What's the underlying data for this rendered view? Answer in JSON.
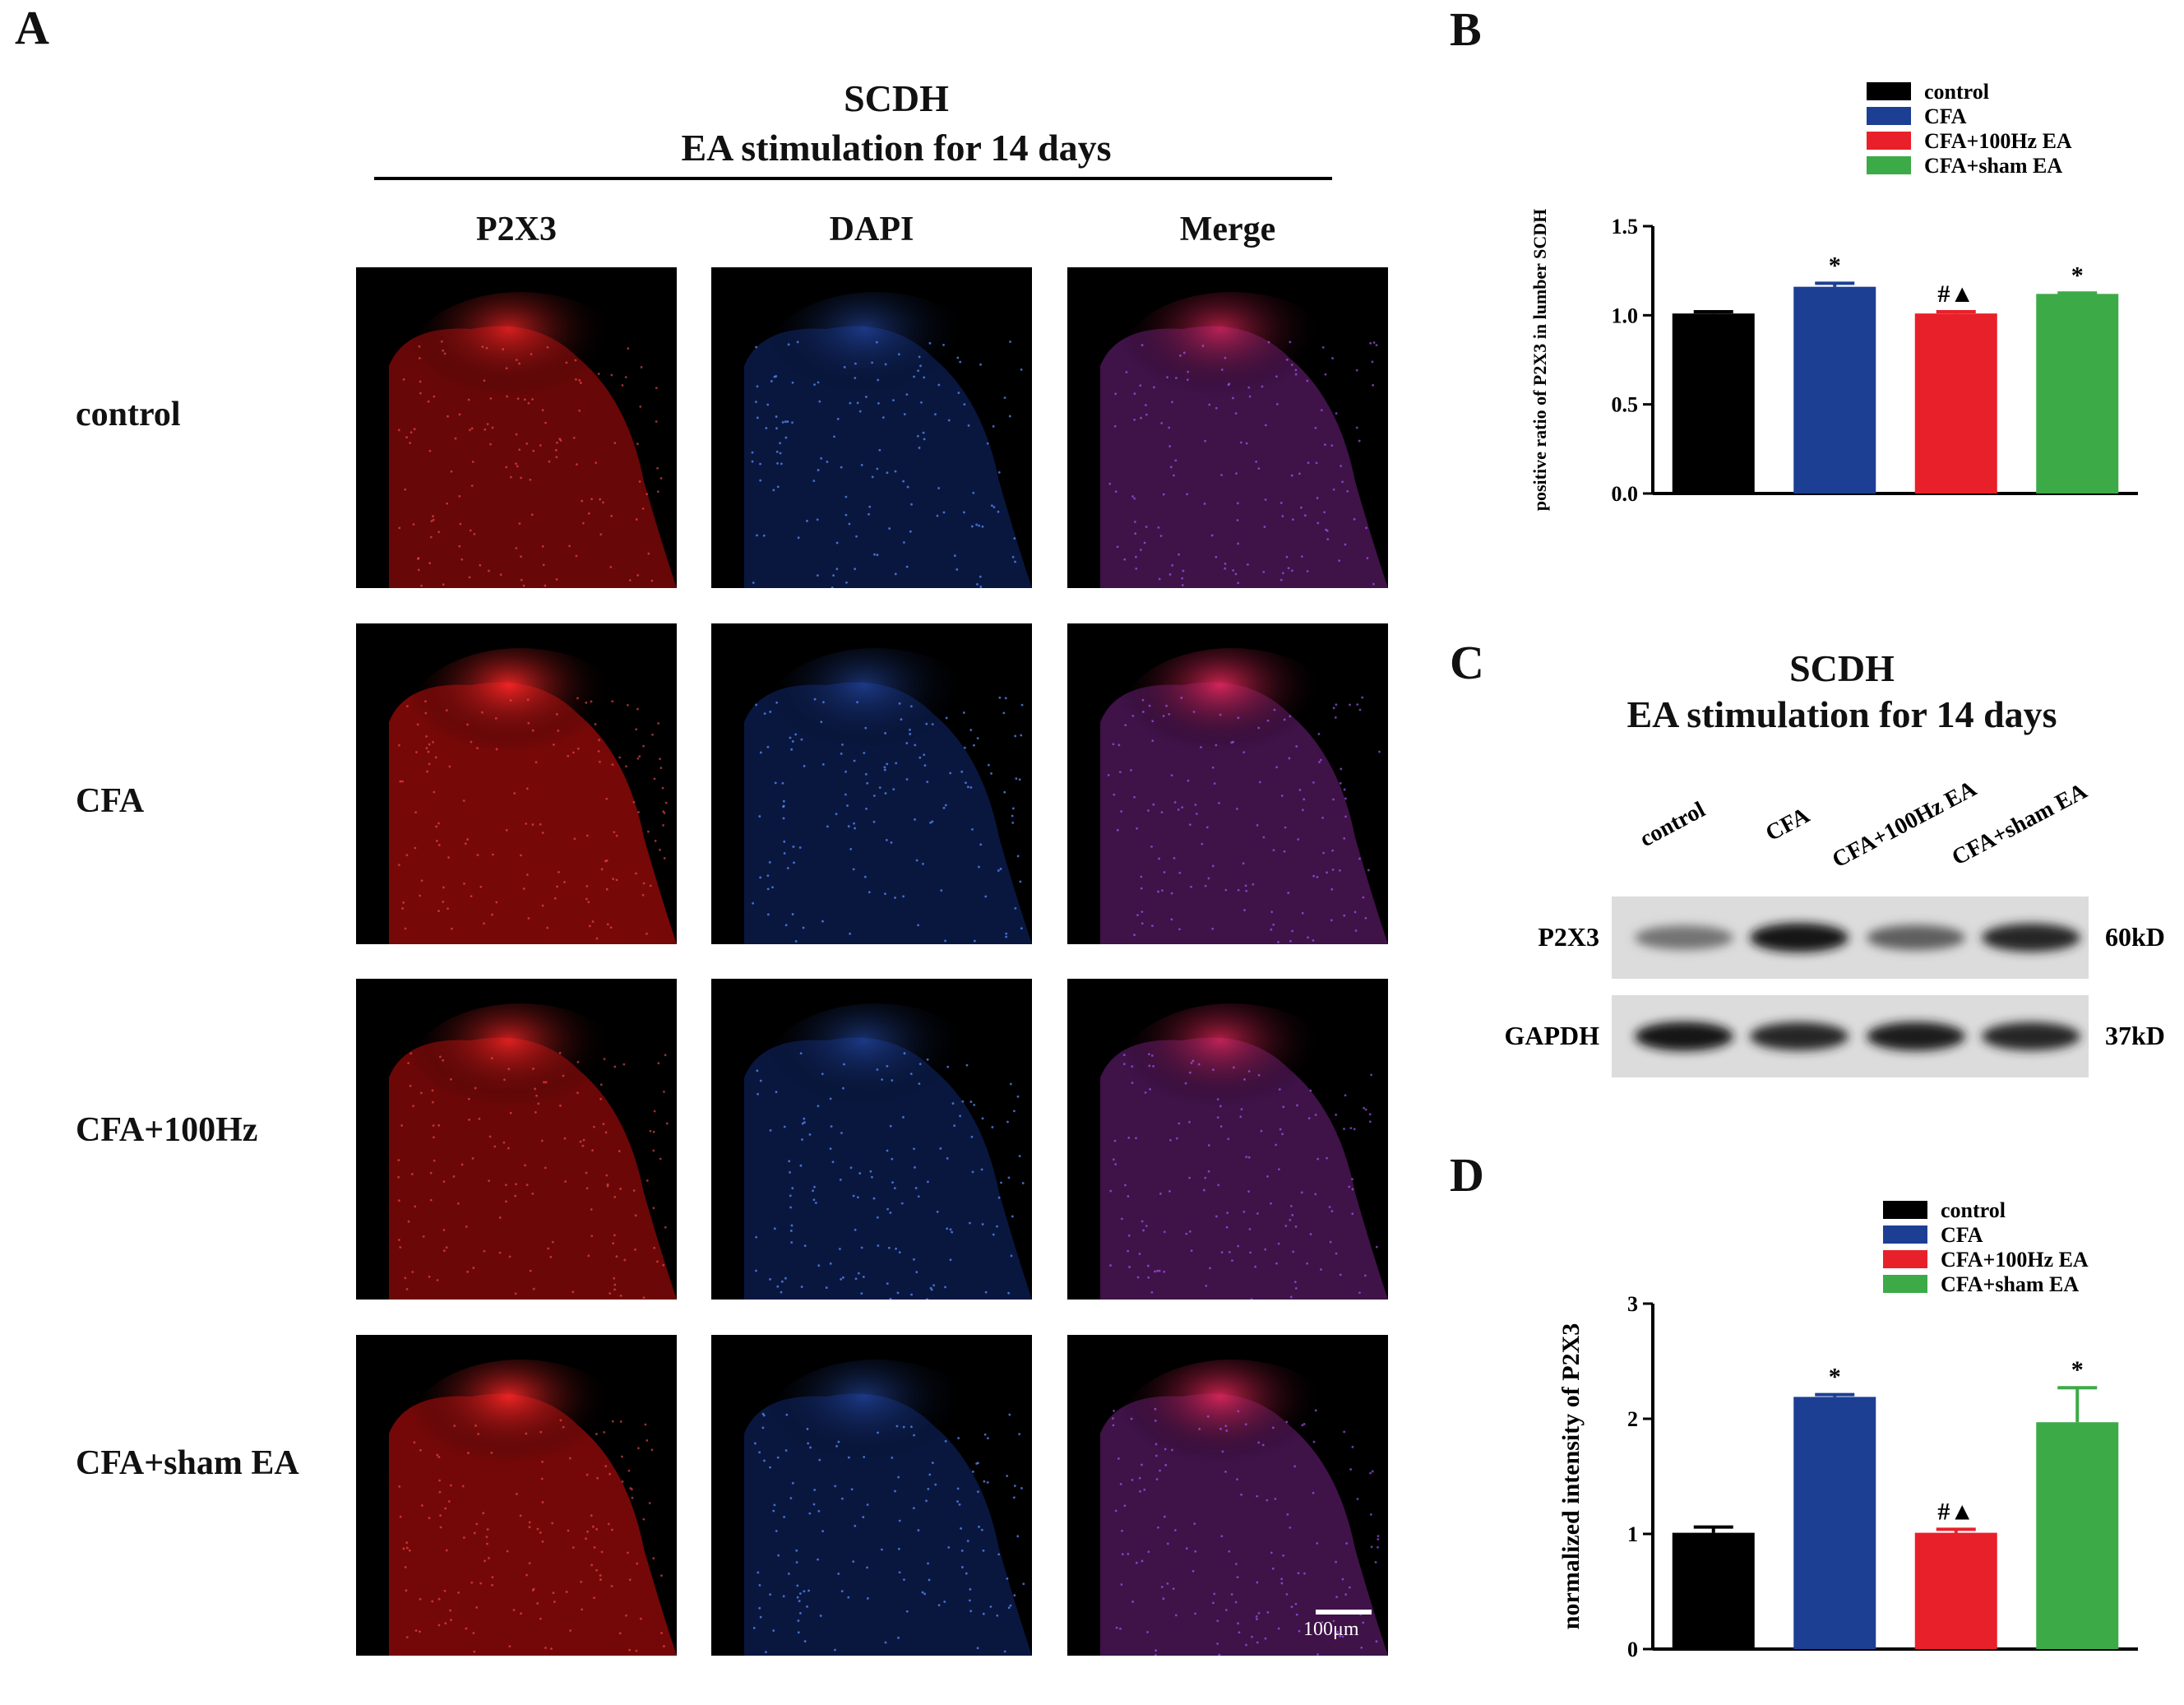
{
  "panel_a": {
    "letter": "A",
    "title_line1": "SCDH",
    "title_line2": "EA stimulation for 14 days",
    "columns": [
      "P2X3",
      "DAPI",
      "Merge"
    ],
    "rows": [
      "control",
      "CFA",
      "CFA+100Hz",
      "CFA+sham EA"
    ],
    "scale_bar_label": "100μm"
  },
  "panel_b": {
    "letter": "B"
  },
  "panel_c": {
    "letter": "C",
    "title_line1": "SCDH",
    "title_line2": "EA stimulation for 14 days",
    "lanes": [
      "control",
      "CFA",
      "CFA+100Hz EA",
      "CFA+sham EA"
    ],
    "bands": [
      {
        "name": "P2X3",
        "size": "60kD",
        "intensity": [
          0.45,
          0.95,
          0.55,
          0.85
        ]
      },
      {
        "name": "GAPDH",
        "size": "37kD",
        "intensity": [
          0.95,
          0.85,
          0.9,
          0.85
        ]
      }
    ]
  },
  "panel_d": {
    "letter": "D"
  },
  "chart_data": [
    {
      "type": "bar",
      "panel": "B",
      "categories": [
        "control",
        "CFA",
        "CFA+100Hz EA",
        "CFA+sham EA"
      ],
      "values": [
        1.01,
        1.16,
        1.01,
        1.12
      ],
      "errors": [
        0.01,
        0.02,
        0.01,
        0.005
      ],
      "annotations": [
        "",
        "*",
        "#▲",
        "*"
      ],
      "colors": [
        "#000000",
        "#1c3f94",
        "#e8202a",
        "#3daa48"
      ],
      "ylabel": "positive ratio of P2X3 in lumber SCDH",
      "ylim": [
        0,
        1.5
      ],
      "yticks": [
        "0.0",
        "0.5",
        "1.0",
        "1.5"
      ],
      "legend": [
        "control",
        "CFA",
        "CFA+100Hz EA",
        "CFA+sham EA"
      ],
      "legend_position": "top-right"
    },
    {
      "type": "bar",
      "panel": "D",
      "categories": [
        "control",
        "CFA",
        "CFA+100Hz EA",
        "CFA+sham EA"
      ],
      "values": [
        1.01,
        2.19,
        1.01,
        1.97
      ],
      "errors": [
        0.05,
        0.02,
        0.03,
        0.3
      ],
      "annotations": [
        "",
        "*",
        "#▲",
        "*"
      ],
      "colors": [
        "#000000",
        "#1c3f94",
        "#e8202a",
        "#3daa48"
      ],
      "ylabel": "normalized intensity of P2X3",
      "ylim": [
        0,
        3
      ],
      "yticks": [
        "0",
        "1",
        "2",
        "3"
      ],
      "legend": [
        "control",
        "CFA",
        "CFA+100Hz EA",
        "CFA+sham EA"
      ],
      "legend_position": "top-right"
    }
  ]
}
